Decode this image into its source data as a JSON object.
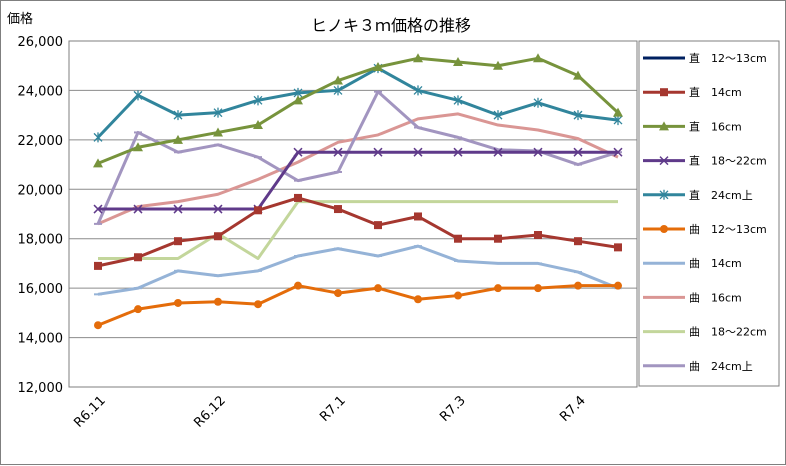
{
  "chart_data": {
    "type": "line",
    "title": "ヒノキ３ｍ価格の推移",
    "ylabel": "価格",
    "xlabel": "",
    "ylim": [
      12000,
      26000
    ],
    "yticks": [
      12000,
      14000,
      16000,
      18000,
      20000,
      22000,
      24000,
      26000
    ],
    "ytick_labels": [
      "12,000",
      "14,000",
      "16,000",
      "18,000",
      "20,000",
      "22,000",
      "24,000",
      "26,000"
    ],
    "grid": true,
    "legend_position": "right",
    "x_tick_labels": [
      {
        "label": "R6.11",
        "index": 0
      },
      {
        "label": "R6.12",
        "index": 3
      },
      {
        "label": "R7.1",
        "index": 6
      },
      {
        "label": "R7.3",
        "index": 9
      },
      {
        "label": "R7.4",
        "index": 12
      }
    ],
    "n_points": 14,
    "series": [
      {
        "name": "直　12～13cm",
        "color": "#002060",
        "marker": "none",
        "values": [
          null,
          null,
          null,
          null,
          null,
          null,
          null,
          null,
          null,
          null,
          null,
          null,
          null,
          null
        ]
      },
      {
        "name": "直　14cm",
        "color": "#a5372f",
        "marker": "square",
        "values": [
          16900,
          17250,
          17900,
          18100,
          19150,
          19650,
          19200,
          18550,
          18900,
          18000,
          18000,
          18150,
          17900,
          17650
        ]
      },
      {
        "name": "直　16cm",
        "color": "#77933c",
        "marker": "triangle",
        "values": [
          21050,
          21700,
          22000,
          22300,
          22600,
          23600,
          24400,
          24950,
          25300,
          25150,
          25000,
          25300,
          24600,
          23100
        ]
      },
      {
        "name": "直　18～22cm",
        "color": "#5f3a8a",
        "marker": "x",
        "values": [
          19200,
          19200,
          19200,
          19200,
          19200,
          21500,
          21500,
          21500,
          21500,
          21500,
          21500,
          21500,
          21500,
          21500
        ]
      },
      {
        "name": "直　24cm上",
        "color": "#31859c",
        "marker": "star",
        "values": [
          22100,
          23800,
          23000,
          23100,
          23600,
          23900,
          24000,
          24900,
          24000,
          23600,
          23000,
          23500,
          23000,
          22800
        ]
      },
      {
        "name": "曲　12～13cm",
        "color": "#e46c0a",
        "marker": "circle",
        "values": [
          14500,
          15150,
          15400,
          15450,
          15350,
          16100,
          15800,
          16000,
          15550,
          15700,
          16000,
          16000,
          16100,
          16100
        ]
      },
      {
        "name": "曲　14cm",
        "color": "#95b3d7",
        "marker": "dash",
        "values": [
          15750,
          16000,
          16700,
          16500,
          16700,
          17300,
          17600,
          17300,
          17700,
          17100,
          17000,
          17000,
          16650,
          16000
        ]
      },
      {
        "name": "曲　16cm",
        "color": "#da9694",
        "marker": "none",
        "values": [
          18600,
          19300,
          19500,
          19800,
          20400,
          21100,
          21900,
          22200,
          22850,
          23050,
          22600,
          22400,
          22050,
          21300
        ]
      },
      {
        "name": "曲　18～22cm",
        "color": "#c3d69b",
        "marker": "none",
        "values": [
          17200,
          17200,
          17200,
          18200,
          17200,
          19500,
          19500,
          19500,
          19500,
          19500,
          19500,
          19500,
          19500,
          19500
        ]
      },
      {
        "name": "曲　24cm上",
        "color": "#a295c0",
        "marker": "dash",
        "values": [
          18600,
          22300,
          21500,
          21800,
          21300,
          20350,
          20700,
          23950,
          22500,
          22100,
          21600,
          21550,
          21000,
          21500
        ]
      }
    ]
  }
}
